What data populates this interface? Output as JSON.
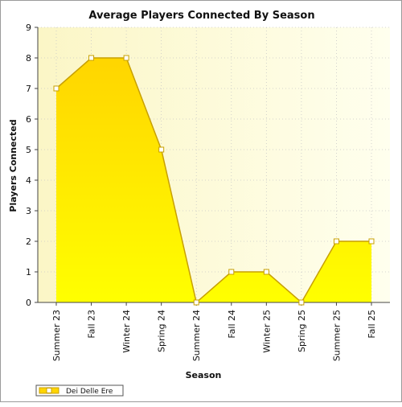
{
  "chart_data": {
    "type": "area",
    "title": "Average Players Connected By Season",
    "xlabel": "Season",
    "ylabel": "Players Connected",
    "categories": [
      "Summer 23",
      "Fall 23",
      "Winter 24",
      "Spring 24",
      "Summer 24",
      "Fall 24",
      "Winter 25",
      "Spring 25",
      "Summer 25",
      "Fall 25"
    ],
    "series": [
      {
        "name": "Dei Delle Ere",
        "values": [
          7,
          8,
          8,
          5,
          0,
          1,
          1,
          0,
          2,
          2
        ]
      }
    ],
    "yticks": [
      "0",
      "1",
      "2",
      "3",
      "4",
      "5",
      "6",
      "7",
      "8",
      "9"
    ],
    "ylim": [
      0,
      9
    ],
    "grid": true,
    "legend_position": "bottom-left",
    "colors": {
      "area_top": "#ffd500",
      "area_bottom": "#ffff00",
      "line": "#c8a000",
      "plot_bg_left": "#fbf6c6",
      "plot_bg_right": "#ffffee"
    }
  }
}
